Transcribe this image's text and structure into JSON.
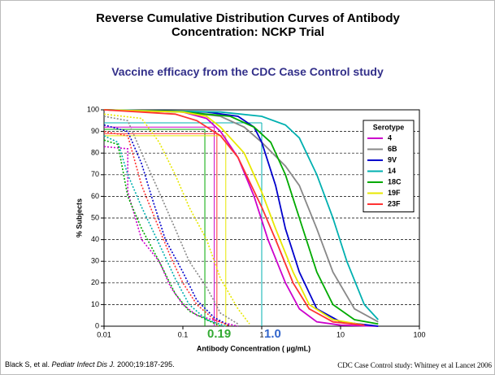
{
  "chart_data": {
    "type": "line",
    "title": "Reverse Cumulative Distribution Curves of Antibody Concentration: NCKP Trial",
    "subtitle": "Vaccine efficacy from the CDC Case Control study",
    "xlabel": "Antibody Concentration (   µg/mL)",
    "ylabel": "% Subjects",
    "xscale": "log",
    "xlim": [
      0.01,
      100
    ],
    "xticks": [
      0.01,
      0.1,
      1,
      10,
      100
    ],
    "ylim": [
      0,
      100
    ],
    "yticks": [
      0,
      10,
      20,
      30,
      40,
      50,
      60,
      70,
      80,
      90,
      100
    ],
    "grid": true,
    "legend_title": "Serotype",
    "legend_position": "upper right",
    "series": [
      {
        "name": "4",
        "color": "#cc00cc",
        "x": [
          0.01,
          0.1,
          0.2,
          0.3,
          0.5,
          0.8,
          1.2,
          2,
          3,
          5,
          10,
          30
        ],
        "values": [
          100,
          99,
          96,
          90,
          78,
          60,
          40,
          20,
          8,
          2,
          0.5,
          0
        ],
        "control_x": [
          0.01,
          0.02,
          0.02,
          0.03,
          0.05,
          0.07,
          0.1,
          0.15,
          0.3,
          0.5
        ],
        "control_values": [
          83,
          82,
          62,
          40,
          30,
          18,
          10,
          5,
          2,
          0
        ]
      },
      {
        "name": "6B",
        "color": "#888888",
        "x": [
          0.01,
          0.1,
          0.3,
          0.6,
          1,
          2,
          3,
          5,
          8,
          15,
          30
        ],
        "values": [
          100,
          99,
          97,
          92,
          85,
          74,
          65,
          45,
          25,
          8,
          2
        ],
        "control_x": [
          0.01,
          0.02,
          0.03,
          0.05,
          0.08,
          0.12,
          0.2,
          0.3,
          0.5
        ],
        "control_values": [
          97,
          95,
          80,
          62,
          45,
          30,
          18,
          6,
          1
        ]
      },
      {
        "name": "9V",
        "color": "#0000cc",
        "x": [
          0.01,
          0.2,
          0.5,
          0.8,
          1,
          1.5,
          2,
          3,
          5,
          10,
          30
        ],
        "values": [
          100,
          99,
          97,
          92,
          85,
          65,
          45,
          25,
          8,
          2,
          0
        ],
        "control_x": [
          0.01,
          0.02,
          0.03,
          0.04,
          0.06,
          0.1,
          0.15,
          0.25,
          0.4
        ],
        "control_values": [
          93,
          90,
          75,
          60,
          40,
          25,
          12,
          4,
          0
        ]
      },
      {
        "name": "14",
        "color": "#00b0b0",
        "x": [
          0.01,
          0.3,
          1,
          2,
          3,
          5,
          8,
          12,
          20,
          30
        ],
        "values": [
          100,
          99,
          97,
          93,
          87,
          70,
          50,
          30,
          10,
          3
        ],
        "control_x": [
          0.01,
          0.015,
          0.02,
          0.03,
          0.05,
          0.08,
          0.12,
          0.2,
          0.35
        ],
        "control_values": [
          88,
          85,
          70,
          55,
          38,
          22,
          10,
          3,
          0
        ]
      },
      {
        "name": "18C",
        "color": "#00aa00",
        "x": [
          0.01,
          0.1,
          0.4,
          0.8,
          1.3,
          2,
          3,
          5,
          8,
          15,
          30
        ],
        "values": [
          100,
          99,
          97,
          92,
          85,
          70,
          50,
          25,
          10,
          3,
          1
        ],
        "control_x": [
          0.01,
          0.015,
          0.02,
          0.03,
          0.05,
          0.08,
          0.12,
          0.2,
          0.3
        ],
        "control_values": [
          86,
          84,
          60,
          45,
          30,
          15,
          7,
          3,
          0
        ]
      },
      {
        "name": "19F",
        "color": "#e8e800",
        "x": [
          0.01,
          0.1,
          0.2,
          0.3,
          0.6,
          1,
          1.5,
          2.5,
          4,
          8,
          20
        ],
        "values": [
          100,
          99,
          97,
          92,
          80,
          62,
          45,
          25,
          10,
          3,
          0.5
        ],
        "control_x": [
          0.01,
          0.03,
          0.05,
          0.08,
          0.12,
          0.2,
          0.3,
          0.5,
          0.7
        ],
        "control_values": [
          98,
          96,
          85,
          70,
          55,
          40,
          22,
          8,
          1
        ]
      },
      {
        "name": "23F",
        "color": "#ff3333",
        "x": [
          0.01,
          0.08,
          0.15,
          0.3,
          0.5,
          1,
          1.5,
          2.5,
          4,
          8,
          20
        ],
        "values": [
          100,
          98,
          95,
          88,
          78,
          55,
          40,
          20,
          8,
          2,
          0.5
        ],
        "control_x": [
          0.01,
          0.02,
          0.03,
          0.05,
          0.07,
          0.1,
          0.15,
          0.25,
          0.4
        ],
        "control_values": [
          90,
          88,
          65,
          45,
          32,
          20,
          10,
          3,
          0
        ]
      }
    ],
    "reference_lines": [
      {
        "x": 0.19,
        "y": 91,
        "color": "#00aa00"
      },
      {
        "x": 0.25,
        "y": 92,
        "color": "#cc00cc"
      },
      {
        "x": 0.27,
        "y": 89,
        "color": "#ff3333"
      },
      {
        "x": 0.35,
        "y": 88,
        "color": "#e8e800"
      },
      {
        "x": 1.0,
        "y": 94,
        "color": "#00b0b0"
      }
    ],
    "annotations": [
      {
        "value": 0.19,
        "label": "0.19",
        "color": "#33aa33"
      },
      {
        "value": 1.0,
        "label": "1.0",
        "color": "#3366cc"
      }
    ],
    "footnote": [
      "Black S, et al. ",
      "Pediatr Infect Dis J.",
      " 2000;19:187-295."
    ],
    "source": "CDC Case Control study: Whitney et al  Lancet 2006"
  }
}
